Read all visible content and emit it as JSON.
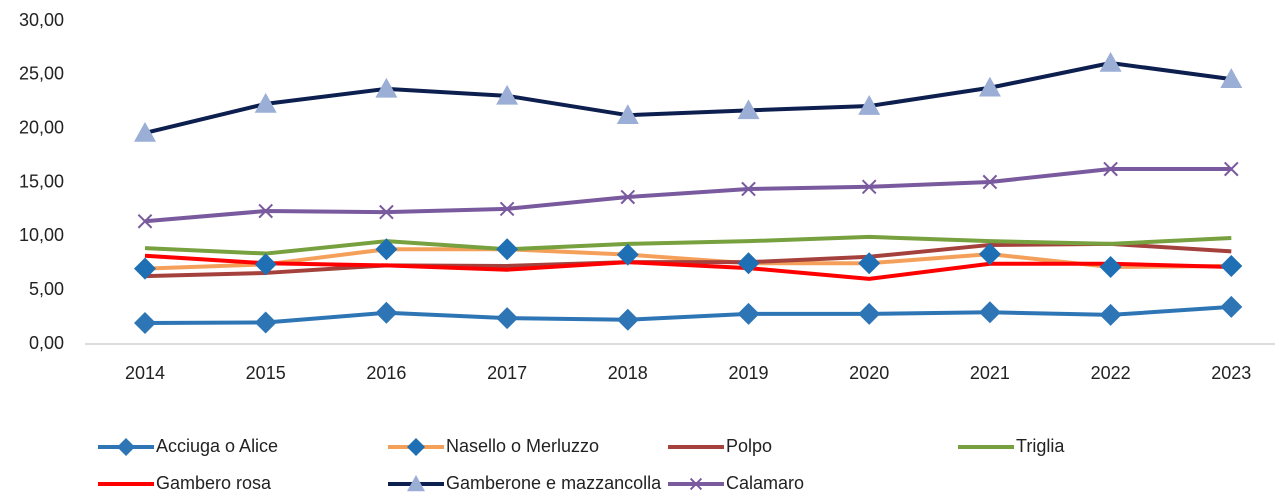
{
  "chart_data": {
    "type": "line",
    "categories": [
      "2014",
      "2015",
      "2016",
      "2017",
      "2018",
      "2019",
      "2020",
      "2021",
      "2022",
      "2023"
    ],
    "ylim": [
      0,
      30
    ],
    "yticks": [
      {
        "value": 0,
        "label": "0,00"
      },
      {
        "value": 5,
        "label": "5,00"
      },
      {
        "value": 10,
        "label": "10,00"
      },
      {
        "value": 15,
        "label": "15,00"
      },
      {
        "value": 20,
        "label": "20,00"
      },
      {
        "value": 25,
        "label": "25,00"
      },
      {
        "value": 30,
        "label": "30,00"
      }
    ],
    "grid": false,
    "legend": "bottom",
    "series": [
      {
        "name": "Acciuga o Alice",
        "color": "#2e75b6",
        "marker": "diamond",
        "marker_color": "#2e75b6",
        "values": [
          1.95,
          2.0,
          2.9,
          2.4,
          2.25,
          2.8,
          2.8,
          2.95,
          2.7,
          3.45
        ]
      },
      {
        "name": "Nasello o Merluzzo",
        "color": "#f5a05a",
        "marker": "diamond",
        "marker_color": "#1f6fb5",
        "values": [
          7.0,
          7.4,
          8.8,
          8.8,
          8.3,
          7.5,
          7.5,
          8.35,
          7.15,
          7.25
        ]
      },
      {
        "name": "Polpo",
        "color": "#a5413c",
        "values": [
          6.3,
          6.6,
          7.3,
          7.25,
          7.6,
          7.6,
          8.1,
          9.2,
          9.3,
          8.6
        ]
      },
      {
        "name": "Triglia",
        "color": "#77a03f",
        "values": [
          8.9,
          8.4,
          9.55,
          8.8,
          9.3,
          9.55,
          9.95,
          9.55,
          9.3,
          9.85
        ]
      },
      {
        "name": "Gambero rosa",
        "color": "#ff0000",
        "values": [
          8.2,
          7.5,
          7.3,
          6.9,
          7.6,
          7.05,
          6.05,
          7.45,
          7.45,
          7.15
        ]
      },
      {
        "name": "Gamberone e mazzancolla",
        "color": "#0d1f4f",
        "marker": "triangle",
        "marker_color": "#9aaed6",
        "values": [
          19.6,
          22.3,
          23.7,
          23.05,
          21.25,
          21.7,
          22.1,
          23.8,
          26.1,
          24.6
        ]
      },
      {
        "name": "Calamaro",
        "color": "#7a5a9e",
        "marker": "x",
        "marker_color": "#7a5a9e",
        "values": [
          11.4,
          12.35,
          12.25,
          12.55,
          13.65,
          14.4,
          14.6,
          15.05,
          16.25,
          16.25
        ]
      }
    ]
  }
}
